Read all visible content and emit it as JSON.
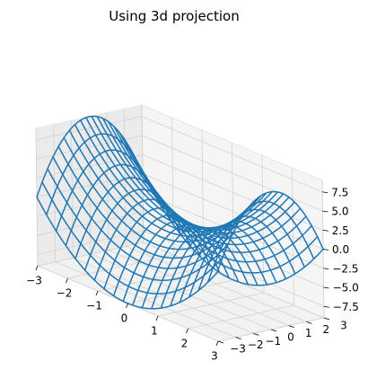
{
  "chart_data": {
    "type": "wireframe_3d",
    "title": "Using 3d projection",
    "x_ticks": [
      "−3",
      "−2",
      "−1",
      "0",
      "1",
      "2",
      "3"
    ],
    "y_ticks": [
      "−3",
      "−2",
      "−1",
      "0",
      "1",
      "2",
      "3"
    ],
    "z_ticks": [
      "7.5",
      "5.0",
      "2.5",
      "0.0",
      "−2.5",
      "−5.0",
      "−7.5"
    ],
    "x_values": [
      -3,
      -2,
      -1,
      0,
      1,
      2,
      3
    ],
    "y_values": [
      -3,
      -2,
      -1,
      0,
      1,
      2,
      3
    ],
    "z_values": [
      7.5,
      5.0,
      2.5,
      0.0,
      -2.5,
      -5.0,
      -7.5
    ],
    "xlim": [
      -3,
      3
    ],
    "ylim": [
      -3,
      3
    ],
    "zlim": [
      -9,
      9
    ],
    "surface": "z = x^2 - y^2",
    "grid_points": 20,
    "wire_color": "#1f77b4",
    "grid": true
  }
}
